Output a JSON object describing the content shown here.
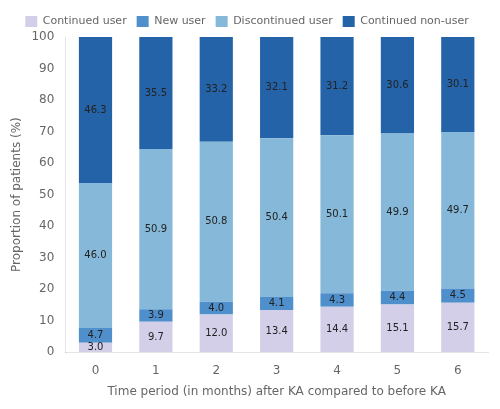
{
  "chart_data": {
    "type": "bar",
    "stacked": true,
    "categories": [
      0,
      1,
      2,
      3,
      4,
      5,
      6
    ],
    "series": [
      {
        "name": "Continued user",
        "color": "#d4cfe8",
        "values": [
          3.0,
          9.7,
          12.0,
          13.4,
          14.4,
          15.1,
          15.7
        ],
        "value_labels": [
          "3.0",
          "9.7",
          "12.0",
          "13.4",
          "14.4",
          "15.1",
          "15.7"
        ]
      },
      {
        "name": "New user",
        "color": "#4f8fcc",
        "values": [
          4.7,
          3.9,
          4.0,
          4.1,
          4.3,
          4.4,
          4.5
        ],
        "value_labels": [
          "4.7",
          "3.9",
          "4.0",
          "4.1",
          "4.3",
          "4.4",
          "4.5"
        ]
      },
      {
        "name": "Discontinued user",
        "color": "#85b8d9",
        "values": [
          46.0,
          50.9,
          50.8,
          50.4,
          50.1,
          49.9,
          49.7
        ],
        "value_labels": [
          "46.0",
          "50.9",
          "50.8",
          "50.4",
          "50.1",
          "49.9",
          "49.7"
        ]
      },
      {
        "name": "Continued non-user",
        "color": "#2563a8",
        "values": [
          46.3,
          35.5,
          33.2,
          32.1,
          31.2,
          30.6,
          30.1
        ],
        "value_labels": [
          "46.3",
          "35.5",
          "33.2",
          "32.1",
          "31.2",
          "30.6",
          "30.1"
        ]
      }
    ],
    "xlabel": "Time period (in months) after KA compared to before KA",
    "ylabel": "Proportion of patients (%)",
    "ylim": [
      0,
      100
    ],
    "yticks": [
      0,
      10,
      20,
      30,
      40,
      50,
      60,
      70,
      80,
      90,
      100
    ],
    "grid": false,
    "legend": "top",
    "data_labels": true
  }
}
